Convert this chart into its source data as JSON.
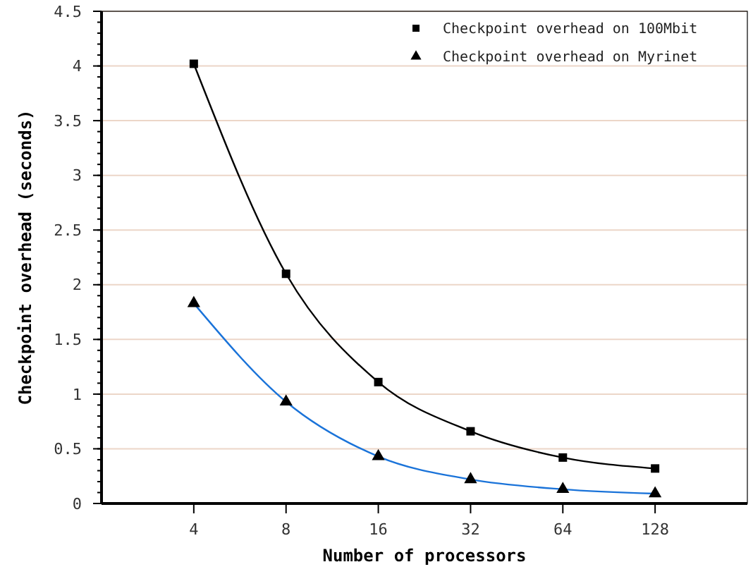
{
  "chart_data": {
    "type": "line",
    "xlabel": "Number of processors",
    "ylabel": "Checkpoint overhead (seconds)",
    "categories": [
      "4",
      "8",
      "16",
      "32",
      "64",
      "128"
    ],
    "series": [
      {
        "name": "Checkpoint overhead on 100Mbit",
        "color": "#000000",
        "marker": "square",
        "values": [
          4.02,
          2.1,
          1.11,
          0.66,
          0.42,
          0.32
        ]
      },
      {
        "name": "Checkpoint overhead on Myrinet",
        "color": "#1a73d9",
        "marker": "triangle",
        "values": [
          1.83,
          0.93,
          0.43,
          0.22,
          0.13,
          0.09
        ]
      }
    ],
    "ylim": [
      0,
      4.5
    ],
    "yticks": [
      0,
      0.5,
      1,
      1.5,
      2,
      2.5,
      3,
      3.5,
      4,
      4.5
    ],
    "grid": "y",
    "legend": "top right"
  }
}
